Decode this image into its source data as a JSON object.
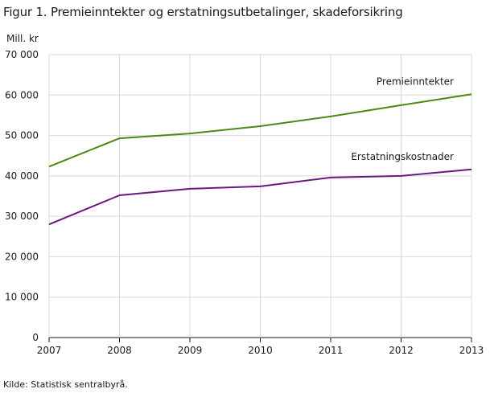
{
  "title": "Figur 1. Premieinntekter og erstatningsutbetalinger, skadeforsikring",
  "source": "Kilde: Statistisk sentralbyrå.",
  "chart_data": {
    "type": "line",
    "ylabel": "Mill. kr",
    "ylim": [
      0,
      70000
    ],
    "yticks": [
      0,
      10000,
      20000,
      30000,
      40000,
      50000,
      60000,
      70000
    ],
    "ytick_labels": [
      "0",
      "10 000",
      "20 000",
      "30 000",
      "40 000",
      "50 000",
      "60 000",
      "70 000"
    ],
    "x": [
      "2007",
      "2008",
      "2009",
      "2010",
      "2011",
      "2012",
      "2013"
    ],
    "grid": "horizontal",
    "series": [
      {
        "name": "Premieinntekter",
        "color": "#4a8a13",
        "values": [
          42300,
          49300,
          50500,
          52300,
          54700,
          57500,
          60200
        ]
      },
      {
        "name": "Erstatningskostnader",
        "color": "#6a1a7a",
        "values": [
          28000,
          35200,
          36800,
          37400,
          39600,
          40000,
          41600
        ]
      }
    ]
  }
}
